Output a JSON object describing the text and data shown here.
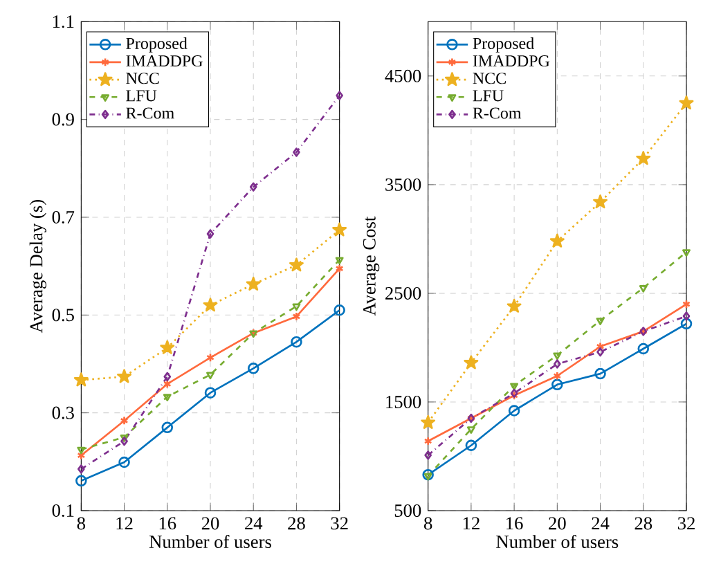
{
  "chart_data": [
    {
      "type": "line",
      "xlabel": "Number of users",
      "ylabel": "Average Delay (s)",
      "x": [
        8,
        12,
        16,
        20,
        24,
        28,
        32
      ],
      "xlim": [
        8,
        32
      ],
      "xticks": [
        8,
        12,
        16,
        20,
        24,
        28,
        32
      ],
      "ylim": [
        0.1,
        1.1
      ],
      "yticks": [
        0.1,
        0.3,
        0.5,
        0.7,
        0.9,
        1.1
      ],
      "grid": true,
      "legend": "top left",
      "series": [
        {
          "name": "Proposed",
          "color": "#0072bd",
          "marker": "circle",
          "line_style": "solid",
          "values": [
            0.161,
            0.199,
            0.27,
            0.341,
            0.391,
            0.445,
            0.51
          ]
        },
        {
          "name": "IMADDPG",
          "color": "#ff6a3d",
          "marker": "cross",
          "line_style": "solid",
          "values": [
            0.213,
            0.284,
            0.359,
            0.413,
            0.463,
            0.497,
            0.595
          ]
        },
        {
          "name": "NCC",
          "color": "#edb120",
          "marker": "star",
          "line_style": "dotted",
          "values": [
            0.367,
            0.374,
            0.433,
            0.52,
            0.563,
            0.602,
            0.674
          ]
        },
        {
          "name": "LFU",
          "color": "#77ac30",
          "marker": "triangle",
          "line_style": "dashed",
          "values": [
            0.225,
            0.25,
            0.333,
            0.378,
            0.463,
            0.518,
            0.613
          ]
        },
        {
          "name": "R-Com",
          "color": "#7e2f8e",
          "marker": "diamond",
          "line_style": "dashdot",
          "values": [
            0.185,
            0.242,
            0.374,
            0.666,
            0.762,
            0.833,
            0.949
          ]
        }
      ]
    },
    {
      "type": "line",
      "xlabel": "Number of users",
      "ylabel": "Average Cost",
      "x": [
        8,
        12,
        16,
        20,
        24,
        28,
        32
      ],
      "xlim": [
        8,
        32
      ],
      "xticks": [
        8,
        12,
        16,
        20,
        24,
        28,
        32
      ],
      "ylim": [
        500,
        5000
      ],
      "yticks": [
        500,
        1500,
        2500,
        3500,
        4500
      ],
      "grid": true,
      "legend": "top left",
      "series": [
        {
          "name": "Proposed",
          "color": "#0072bd",
          "marker": "circle",
          "line_style": "solid",
          "values": [
            830,
            1100,
            1420,
            1660,
            1760,
            1990,
            2220
          ]
        },
        {
          "name": "IMADDPG",
          "color": "#ff6a3d",
          "marker": "cross",
          "line_style": "solid",
          "values": [
            1140,
            1350,
            1560,
            1740,
            2010,
            2150,
            2400
          ]
        },
        {
          "name": "NCC",
          "color": "#edb120",
          "marker": "star",
          "line_style": "dotted",
          "values": [
            1310,
            1860,
            2380,
            2980,
            3340,
            3740,
            4250
          ]
        },
        {
          "name": "LFU",
          "color": "#77ac30",
          "marker": "triangle",
          "line_style": "dashed",
          "values": [
            820,
            1250,
            1650,
            1930,
            2250,
            2550,
            2880
          ]
        },
        {
          "name": "R-Com",
          "color": "#7e2f8e",
          "marker": "diamond",
          "line_style": "dashdot",
          "values": [
            1010,
            1350,
            1580,
            1850,
            1960,
            2150,
            2290
          ]
        }
      ]
    }
  ]
}
